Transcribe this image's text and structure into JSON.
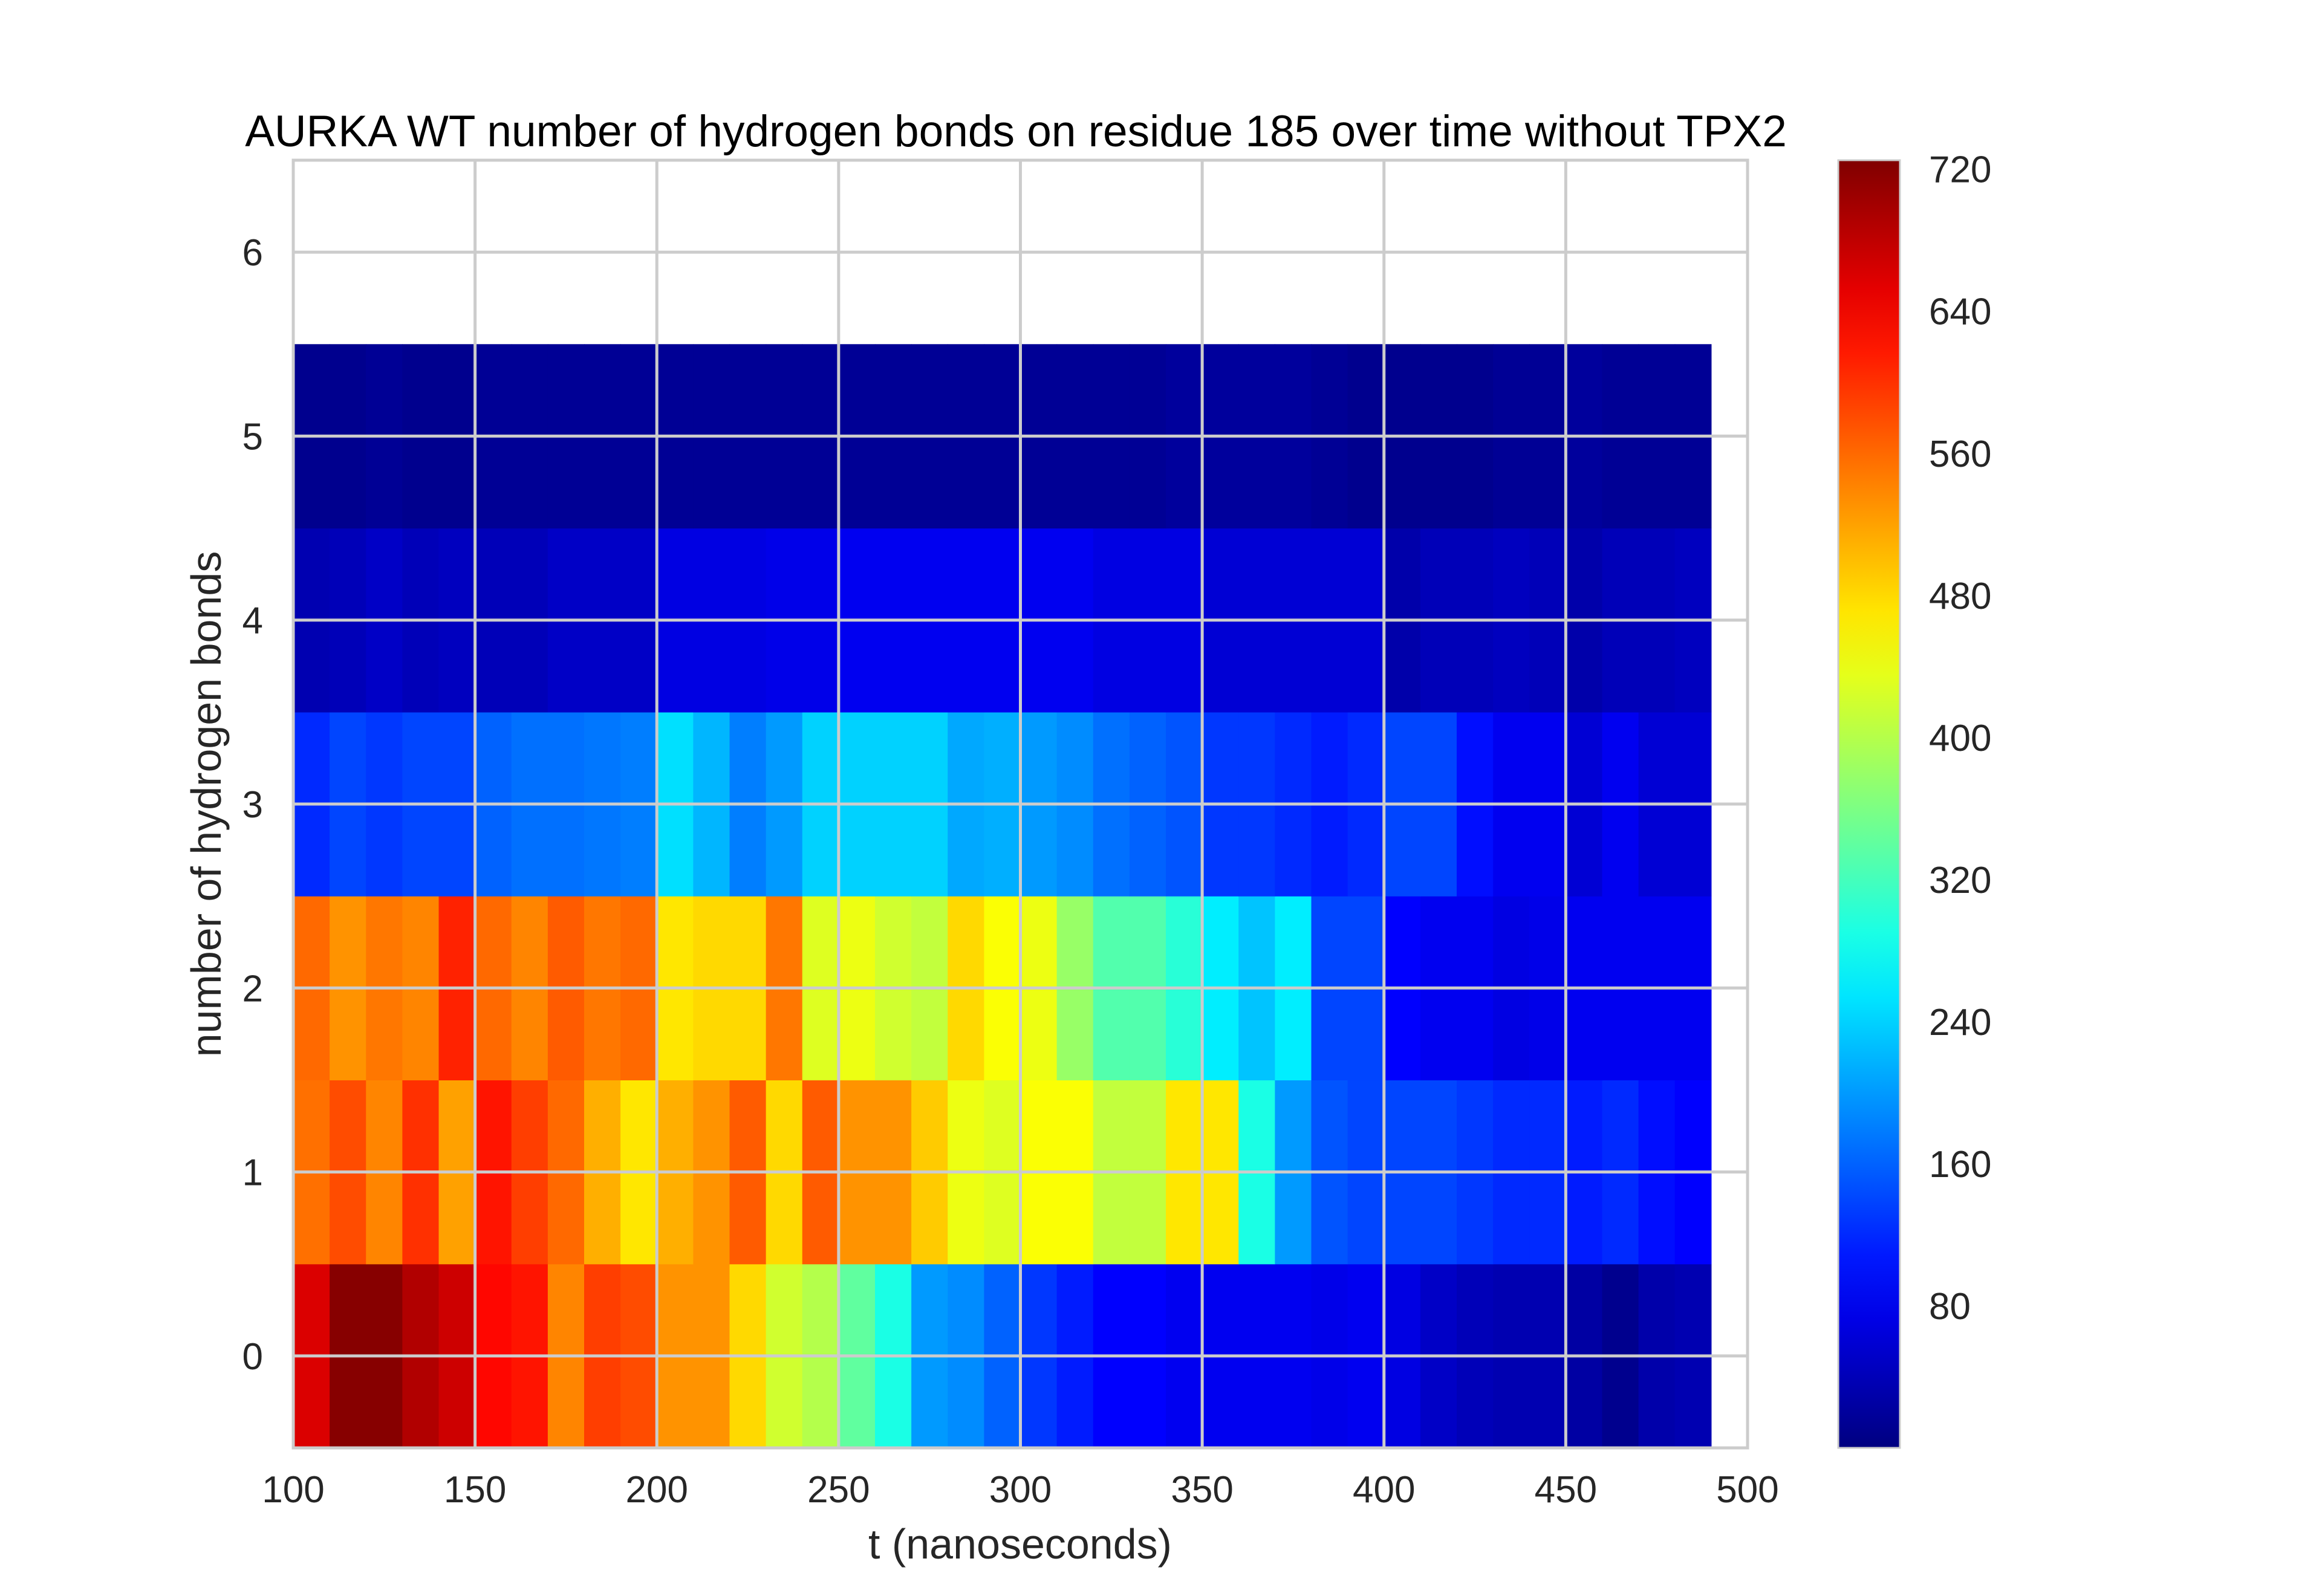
{
  "chart_data": {
    "type": "heatmap",
    "title": "AURKA WT number of hydrogen bonds on residue 185 over time without TPX2",
    "xlabel": "t (nanoseconds)",
    "ylabel": "number of hydrogen bonds",
    "xlim": [
      100,
      500
    ],
    "ylim": [
      -0.5,
      6.5
    ],
    "xticks": [
      "100",
      "150",
      "200",
      "250",
      "300",
      "350",
      "400",
      "450",
      "500"
    ],
    "yticks": [
      "0",
      "1",
      "2",
      "3",
      "4",
      "5",
      "6"
    ],
    "grid": true,
    "colormap": "jet",
    "colorbar": {
      "min": 0,
      "max": 725,
      "ticks": [
        "80",
        "160",
        "240",
        "320",
        "400",
        "480",
        "560",
        "640",
        "720"
      ]
    },
    "x_bins": [
      100,
      110,
      120,
      130,
      140,
      150,
      160,
      170,
      180,
      190,
      200,
      210,
      220,
      230,
      240,
      250,
      260,
      270,
      280,
      290,
      300,
      310,
      320,
      330,
      340,
      350,
      360,
      370,
      380,
      390,
      400,
      410,
      420,
      430,
      440,
      450,
      460,
      470,
      480,
      490
    ],
    "y_bins": [
      -0.5,
      0.5,
      1.5,
      2.5,
      3.5,
      4.5,
      5.5
    ],
    "counts": [
      [
        660,
        720,
        720,
        690,
        670,
        630,
        620,
        540,
        590,
        580,
        530,
        530,
        480,
        420,
        400,
        340,
        290,
        200,
        190,
        160,
        130,
        110,
        90,
        90,
        80,
        80,
        80,
        80,
        75,
        80,
        70,
        50,
        40,
        35,
        35,
        25,
        10,
        30,
        35
      ],
      [
        555,
        580,
        540,
        600,
        520,
        620,
        590,
        560,
        510,
        470,
        510,
        530,
        570,
        480,
        570,
        530,
        530,
        490,
        440,
        430,
        450,
        450,
        410,
        410,
        470,
        470,
        290,
        200,
        150,
        140,
        140,
        140,
        130,
        120,
        120,
        110,
        120,
        100,
        90
      ],
      [
        560,
        530,
        550,
        540,
        610,
        560,
        540,
        570,
        550,
        560,
        470,
        480,
        480,
        550,
        430,
        440,
        420,
        410,
        480,
        450,
        440,
        380,
        330,
        330,
        300,
        260,
        230,
        260,
        140,
        140,
        90,
        80,
        80,
        70,
        75,
        80,
        80,
        80,
        80
      ],
      [
        120,
        140,
        130,
        140,
        140,
        160,
        170,
        170,
        175,
        180,
        250,
        220,
        180,
        200,
        240,
        240,
        240,
        240,
        210,
        215,
        200,
        190,
        170,
        160,
        150,
        130,
        130,
        120,
        110,
        120,
        140,
        140,
        100,
        80,
        80,
        60,
        80,
        60,
        60
      ],
      [
        35,
        40,
        50,
        40,
        45,
        40,
        40,
        50,
        50,
        50,
        70,
        70,
        70,
        75,
        75,
        80,
        80,
        80,
        80,
        80,
        80,
        80,
        70,
        70,
        70,
        60,
        60,
        60,
        60,
        60,
        30,
        40,
        40,
        45,
        40,
        30,
        40,
        40,
        45
      ],
      [
        10,
        10,
        15,
        10,
        10,
        15,
        15,
        15,
        15,
        15,
        15,
        15,
        15,
        15,
        15,
        15,
        15,
        15,
        15,
        15,
        15,
        15,
        15,
        15,
        20,
        20,
        20,
        20,
        15,
        10,
        10,
        10,
        10,
        15,
        15,
        20,
        15,
        15,
        15
      ]
    ]
  }
}
